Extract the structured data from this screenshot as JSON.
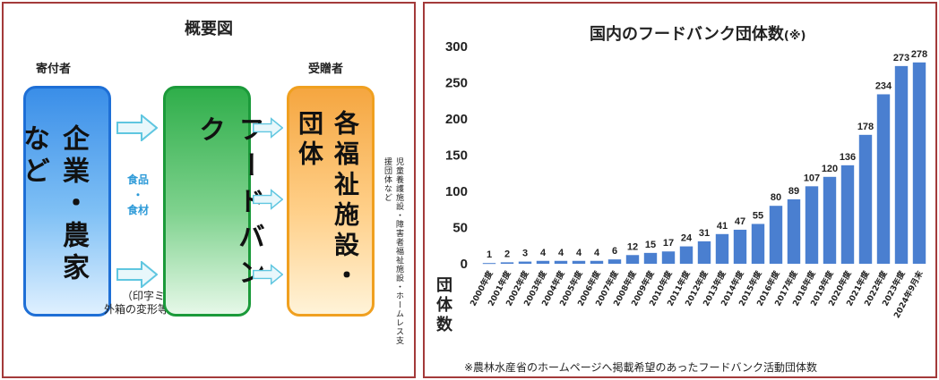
{
  "overview": {
    "title": "概要図",
    "donor_label": "寄付者",
    "recipient_label": "受贈者",
    "donor_box": "企業・農家など",
    "foodbank_box": "フードバンク",
    "recipient_box": "各福祉施設・団体",
    "goods_lines": [
      "食品",
      "・",
      "食材"
    ],
    "goods_note_lines": [
      "（印字ミス、",
      "外箱の変形等）"
    ],
    "recipient_side_note": "児童養護施設・障害者福祉施設・ホームレス支援団体など",
    "colors": {
      "donor": "#1e6fd6",
      "foodbank": "#1b9a3a",
      "recipient": "#f0a020",
      "arrow": "#5fc6e0",
      "border": "#a33a3a"
    }
  },
  "chart_data": {
    "type": "bar",
    "title": "国内のフードバンク団体数",
    "title_suffix": "(※)",
    "ylabel": "団体数",
    "ylim": [
      0,
      300
    ],
    "yticks": [
      0,
      50,
      100,
      150,
      200,
      250,
      300
    ],
    "categories": [
      "2000年度",
      "2001年度",
      "2002年度",
      "2003年度",
      "2004年度",
      "2005年度",
      "2006年度",
      "2007年度",
      "2008年度",
      "2009年度",
      "2010年度",
      "2011年度",
      "2012年度",
      "2013年度",
      "2014年度",
      "2015年度",
      "2016年度",
      "2017年度",
      "2018年度",
      "2019年度",
      "2020年度",
      "2021年度",
      "2022年度",
      "2023年度",
      "2024年9月末"
    ],
    "values": [
      1,
      2,
      3,
      4,
      4,
      4,
      4,
      6,
      12,
      15,
      17,
      24,
      31,
      41,
      47,
      55,
      80,
      89,
      107,
      120,
      136,
      178,
      234,
      273,
      278
    ],
    "bar_color": "#4a7fd0",
    "grid": false,
    "footnote": "※農林水産省のホームページへ掲載希望のあったフードバンク活動団体数"
  }
}
